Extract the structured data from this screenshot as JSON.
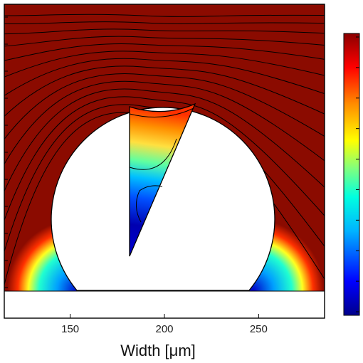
{
  "chart_data": {
    "type": "heatmap",
    "title": "",
    "xlabel": "Width [μm]",
    "ylabel": "",
    "xlim": [
      115,
      285
    ],
    "x_ticks": [
      150,
      200,
      250
    ],
    "x_tick_labels": [
      "150",
      "200",
      "250"
    ],
    "colorbar": {
      "colors": [
        "#00008b",
        "#0000ff",
        "#00b4ff",
        "#00ffe0",
        "#7fff7f",
        "#ffff00",
        "#ff8c00",
        "#ff0000",
        "#8b0000"
      ],
      "tick_count": 10,
      "tick_labels": []
    },
    "field_colors": {
      "high": "#8b0b00",
      "mid": "#ff8c00",
      "low": "#0000c8"
    },
    "streamline_count": 14,
    "grid": false
  }
}
